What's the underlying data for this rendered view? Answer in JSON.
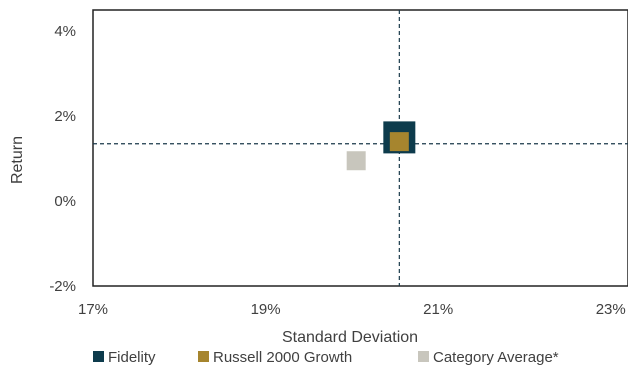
{
  "chart_data": {
    "type": "scatter",
    "title": "",
    "xlabel": "Standard Deviation",
    "ylabel": "Return",
    "xlim": [
      17,
      23.2
    ],
    "ylim": [
      -2,
      4.5
    ],
    "x_ticks": [
      17,
      19,
      21,
      23
    ],
    "x_tick_labels": [
      "17%",
      "19%",
      "21%",
      "23%"
    ],
    "y_ticks": [
      -2,
      0,
      2,
      4
    ],
    "y_tick_labels": [
      "-2%",
      "0%",
      "2%",
      "4%"
    ],
    "grid": false,
    "legend_position": "bottom",
    "reference_lines": {
      "x": 20.55,
      "y": 1.35,
      "style": "dashed"
    },
    "series": [
      {
        "name": "Fidelity",
        "color": "#0d3b4c",
        "marker": "square-large",
        "points": [
          {
            "x": 20.55,
            "y": 1.5
          }
        ]
      },
      {
        "name": "Russell 2000 Growth",
        "color": "#a6852e",
        "marker": "square",
        "points": [
          {
            "x": 20.55,
            "y": 1.4
          }
        ]
      },
      {
        "name": "Category Average*",
        "color": "#c8c6bd",
        "marker": "square",
        "points": [
          {
            "x": 20.05,
            "y": 0.95
          }
        ]
      }
    ]
  }
}
